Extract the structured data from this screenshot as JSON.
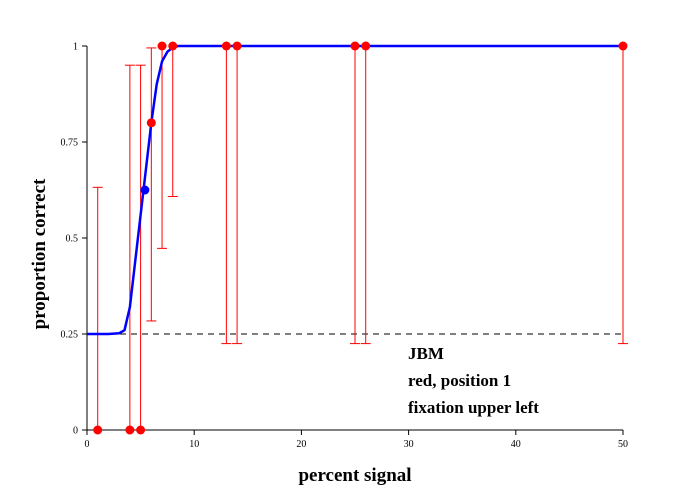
{
  "chart_data": {
    "type": "scatter",
    "title": "",
    "xlabel": "percent signal",
    "ylabel": "proportion correct",
    "xlim": [
      0,
      50
    ],
    "ylim": [
      0,
      1
    ],
    "xticks": [
      0,
      10,
      20,
      30,
      40,
      50
    ],
    "yticks": [
      0,
      0.25,
      0.5,
      0.75,
      1
    ],
    "ytick_labels": [
      "0",
      "0.25",
      "0.5",
      "0.75",
      "1"
    ],
    "grid": false,
    "chance_level": 0.25,
    "annotations": [
      "JBM",
      "red, position 1",
      "fixation upper left"
    ],
    "colors": {
      "points": "#ff0000",
      "error_bars": "#ff0000",
      "fit": "#0000ff",
      "chance_line": "#000000"
    },
    "points": [
      {
        "x": 1,
        "y": 0,
        "lo": 0,
        "hi": 0.632
      },
      {
        "x": 4,
        "y": 0,
        "lo": 0,
        "hi": 0.95
      },
      {
        "x": 5,
        "y": 0,
        "lo": 0,
        "hi": 0.95
      },
      {
        "x": 6,
        "y": 0.8,
        "lo": 0.284,
        "hi": 0.995
      },
      {
        "x": 7,
        "y": 1,
        "lo": 0.473,
        "hi": 1
      },
      {
        "x": 8,
        "y": 1,
        "lo": 0.608,
        "hi": 1
      },
      {
        "x": 13,
        "y": 1,
        "lo": 0.225,
        "hi": 1
      },
      {
        "x": 14,
        "y": 1,
        "lo": 0.225,
        "hi": 1
      },
      {
        "x": 25,
        "y": 1,
        "lo": 0.225,
        "hi": 1
      },
      {
        "x": 26,
        "y": 1,
        "lo": 0.225,
        "hi": 1
      },
      {
        "x": 50,
        "y": 1,
        "lo": 0.225,
        "hi": 1
      }
    ],
    "threshold_point": {
      "x": 5.4,
      "y": 0.625
    },
    "fit_curve": {
      "x": [
        0,
        1,
        2,
        3,
        3.5,
        4,
        4.5,
        5,
        5.5,
        6,
        6.5,
        7,
        7.5,
        8,
        8.5,
        9,
        10,
        50
      ],
      "y": [
        0.25,
        0.25,
        0.25,
        0.252,
        0.26,
        0.32,
        0.44,
        0.56,
        0.68,
        0.8,
        0.9,
        0.96,
        0.985,
        0.996,
        1,
        1,
        1,
        1
      ]
    }
  }
}
